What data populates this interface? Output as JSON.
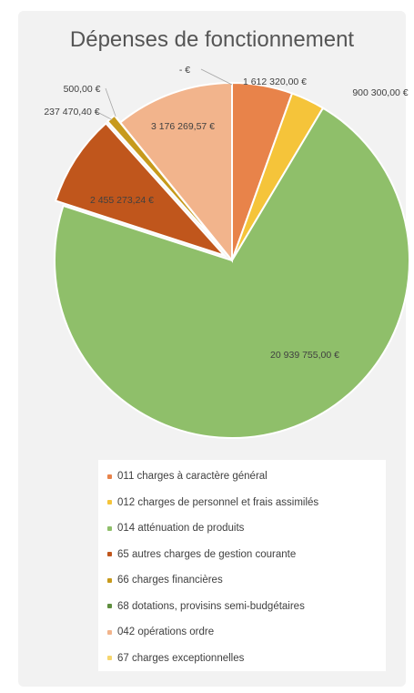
{
  "chart_data": {
    "type": "pie",
    "title": "Dépenses de fonctionnement",
    "categories": [
      "011 charges à caractère général",
      "012 charges de personnel et frais assimilés",
      "014 atténuation de produits",
      "65 autres charges de gestion courante",
      "66 charges financières",
      "68 dotations, provisins semi-budgétaires",
      "042 opérations ordre",
      "67 charges exceptionnelles"
    ],
    "values": [
      1612320.0,
      900300.0,
      20939755.0,
      2455273.24,
      237470.4,
      500.0,
      3176269.57,
      0
    ],
    "data_labels": [
      "1 612 320,00 €",
      "900 300,00 €",
      "20 939 755,00 €",
      "2 455 273,24 €",
      "237 470,40 €",
      "500,00 €",
      "3 176 269,57 €",
      "-   €"
    ],
    "colors": [
      "#e8834a",
      "#f5c43a",
      "#8fbf6a",
      "#c0561c",
      "#c79a1c",
      "#5e8e3e",
      "#f2b48c",
      "#f6d66e"
    ],
    "legend_position": "bottom"
  }
}
